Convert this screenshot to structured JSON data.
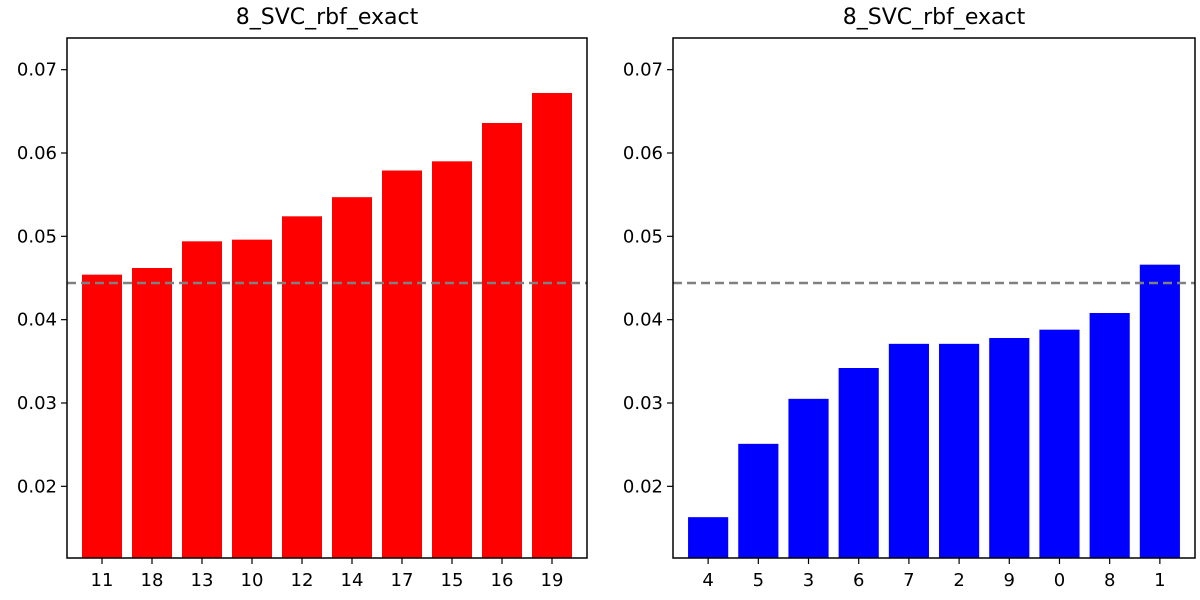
{
  "chart_data": [
    {
      "type": "bar",
      "title": "8_SVC_rbf_exact",
      "xlabel": "",
      "ylabel": "",
      "categories": [
        "11",
        "18",
        "13",
        "10",
        "12",
        "14",
        "17",
        "15",
        "16",
        "19"
      ],
      "values": [
        0.0454,
        0.0462,
        0.0494,
        0.0496,
        0.0524,
        0.0547,
        0.0579,
        0.059,
        0.0636,
        0.0672
      ],
      "bar_color": "#ff0000",
      "ylim": [
        0.0114,
        0.0738
      ],
      "yticks": [
        "0.02",
        "0.03",
        "0.04",
        "0.05",
        "0.06",
        "0.07"
      ],
      "reference_line": {
        "value": 0.0444,
        "style": "dashed",
        "color": "#808080"
      }
    },
    {
      "type": "bar",
      "title": "8_SVC_rbf_exact",
      "xlabel": "",
      "ylabel": "",
      "categories": [
        "4",
        "5",
        "3",
        "6",
        "7",
        "2",
        "9",
        "0",
        "8",
        "1"
      ],
      "values": [
        0.0163,
        0.0251,
        0.0305,
        0.0342,
        0.0371,
        0.0371,
        0.0378,
        0.0388,
        0.0408,
        0.0466
      ],
      "bar_color": "#0000ff",
      "ylim": [
        0.0114,
        0.0738
      ],
      "yticks": [
        "0.02",
        "0.03",
        "0.04",
        "0.05",
        "0.06",
        "0.07"
      ],
      "reference_line": {
        "value": 0.0444,
        "style": "dashed",
        "color": "#808080"
      }
    }
  ]
}
